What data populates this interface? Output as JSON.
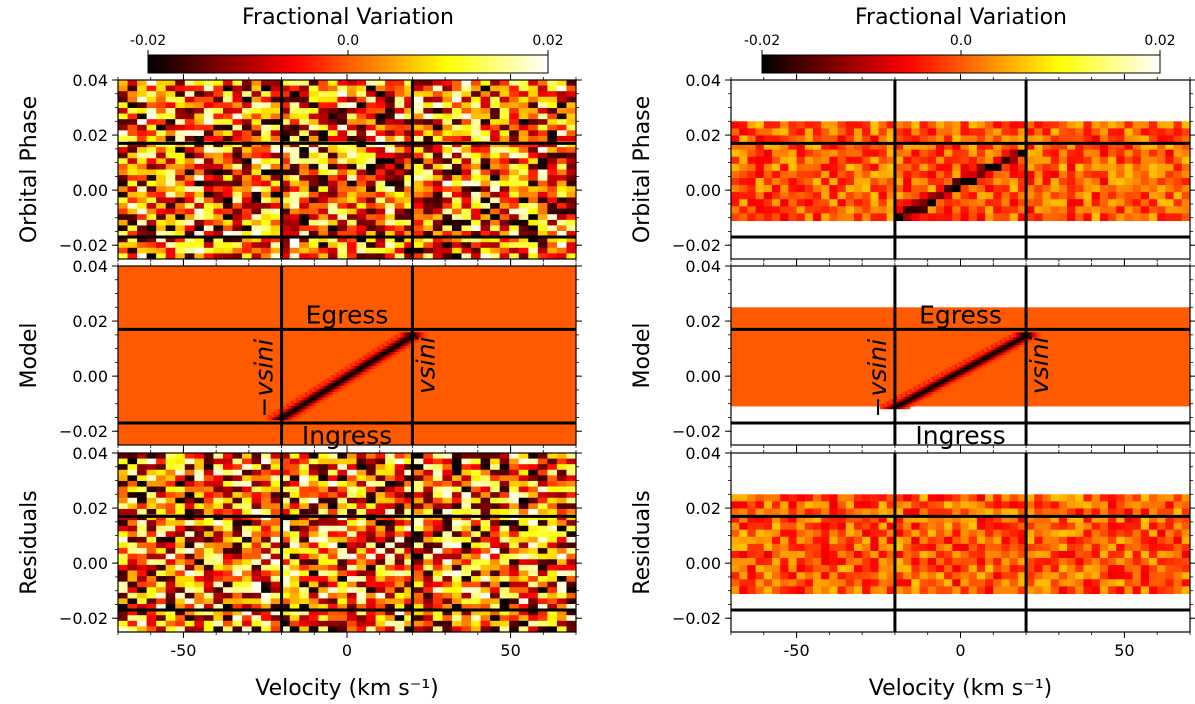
{
  "chart_data": [
    {
      "type": "heatmap",
      "panel_set": "left",
      "colorbar": {
        "title": "Fractional Variation",
        "tick_labels": [
          "-0.02",
          "0.0",
          "0.02"
        ],
        "ticks": [
          -0.02,
          0.0,
          0.02
        ],
        "range": [
          -0.02,
          0.02
        ],
        "colormap": "hot"
      },
      "xlabel_main": "Velocity",
      "xlabel_unit": "(km s⁻¹)",
      "xlim": [
        -70,
        70
      ],
      "x_tick_labels": [
        "-50",
        "0",
        "50"
      ],
      "x_ticks": [
        -50,
        0,
        50
      ],
      "ylim": [
        -0.025,
        0.04
      ],
      "y_tick_labels": [
        "0.04",
        "0.02",
        "0.00",
        "−0.02"
      ],
      "y_ticks": [
        0.04,
        0.02,
        0.0,
        -0.02
      ],
      "phase_coverage": [
        -0.025,
        0.04
      ],
      "vsini_lines": [
        -20,
        20
      ],
      "ingress_egress_lines": [
        -0.017,
        0.017
      ],
      "shadow_track": {
        "v_start": -20,
        "phase_start": -0.015,
        "v_end": 20,
        "phase_end": 0.015
      },
      "panels": [
        {
          "ylabel": "Orbital Phase",
          "content": "data"
        },
        {
          "ylabel": "Model",
          "content": "model"
        },
        {
          "ylabel": "Residuals",
          "content": "residuals"
        }
      ],
      "annotations": {
        "egress": "Egress",
        "ingress": "Ingress",
        "neg_vsini": "−vsini",
        "pos_vsini": "vsini"
      }
    },
    {
      "type": "heatmap",
      "panel_set": "right",
      "colorbar": {
        "title": "Fractional Variation",
        "tick_labels": [
          "-0.02",
          "0.0",
          "0.02"
        ],
        "ticks": [
          -0.02,
          0.0,
          0.02
        ],
        "range": [
          -0.02,
          0.02
        ],
        "colormap": "hot"
      },
      "xlabel_main": "Velocity",
      "xlabel_unit": "(km s⁻¹)",
      "xlim": [
        -70,
        70
      ],
      "x_tick_labels": [
        "-50",
        "0",
        "50"
      ],
      "x_ticks": [
        -50,
        0,
        50
      ],
      "ylim": [
        -0.025,
        0.04
      ],
      "y_tick_labels": [
        "0.04",
        "0.02",
        "0.00",
        "−0.02"
      ],
      "y_ticks": [
        0.04,
        0.02,
        0.0,
        -0.02
      ],
      "phase_coverage": [
        -0.011,
        0.025
      ],
      "vsini_lines": [
        -20,
        20
      ],
      "ingress_egress_lines": [
        -0.017,
        0.017
      ],
      "shadow_track": {
        "v_start": -20,
        "phase_start": -0.011,
        "v_end": 20,
        "phase_end": 0.015
      },
      "panels": [
        {
          "ylabel": "Orbital Phase",
          "content": "data"
        },
        {
          "ylabel": "Model",
          "content": "model"
        },
        {
          "ylabel": "Residuals",
          "content": "residuals"
        }
      ],
      "annotations": {
        "egress": "Egress",
        "ingress": "Ingress",
        "neg_vsini": "−vsini",
        "pos_vsini": "vsini"
      }
    }
  ]
}
